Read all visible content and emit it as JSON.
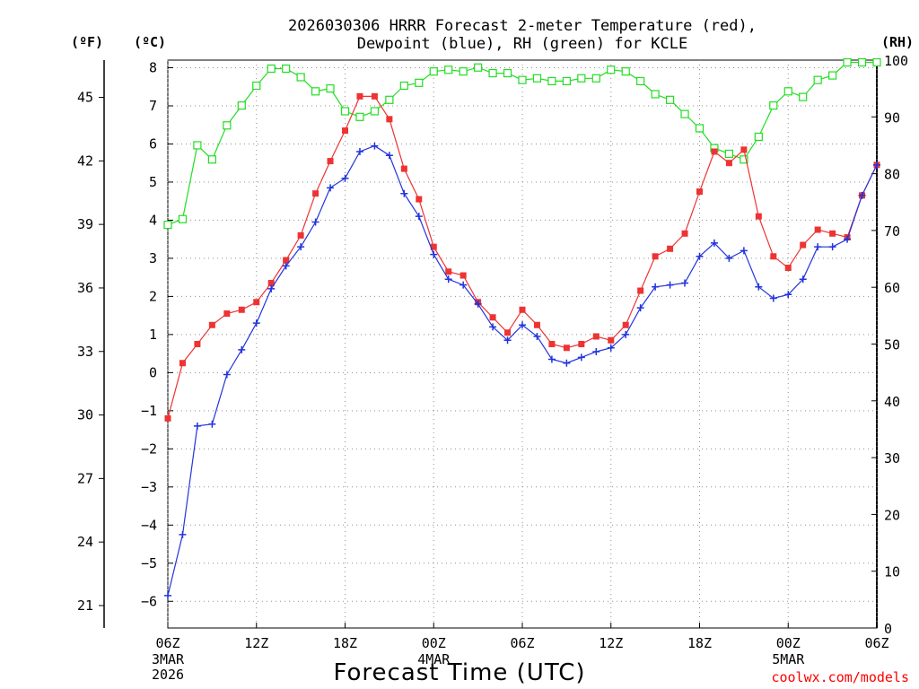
{
  "chart_data": {
    "type": "line",
    "title_line1": "2026030306 HRRR Forecast 2-meter Temperature (red),",
    "title_line2": "Dewpoint (blue), RH (green) for KCLE",
    "xlabel": "Forecast Time (UTC)",
    "credit": "coolwx.com/models",
    "left_unit_f": "(ºF)",
    "left_unit_c": "(ºC)",
    "right_unit": "(RH)",
    "x_hours_range": [
      0,
      48
    ],
    "y_c_range": [
      -6.7,
      8.2
    ],
    "y_rh_range": [
      0,
      100
    ],
    "x_ticks": [
      {
        "hour": 0,
        "label": "06Z",
        "sub1": "3MAR",
        "sub2": "2026"
      },
      {
        "hour": 6,
        "label": "12Z",
        "sub1": "",
        "sub2": ""
      },
      {
        "hour": 12,
        "label": "18Z",
        "sub1": "",
        "sub2": ""
      },
      {
        "hour": 18,
        "label": "00Z",
        "sub1": "4MAR",
        "sub2": ""
      },
      {
        "hour": 24,
        "label": "06Z",
        "sub1": "",
        "sub2": ""
      },
      {
        "hour": 30,
        "label": "12Z",
        "sub1": "",
        "sub2": ""
      },
      {
        "hour": 36,
        "label": "18Z",
        "sub1": "",
        "sub2": ""
      },
      {
        "hour": 42,
        "label": "00Z",
        "sub1": "5MAR",
        "sub2": ""
      },
      {
        "hour": 48,
        "label": "06Z",
        "sub1": "",
        "sub2": ""
      }
    ],
    "y_c_ticks": [
      "8",
      "7",
      "6",
      "5",
      "4",
      "3",
      "2",
      "1",
      "0",
      "−1",
      "−2",
      "−3",
      "−4",
      "−5",
      "−6"
    ],
    "y_f_ticks": [
      "45",
      "42",
      "39",
      "36",
      "33",
      "30",
      "27",
      "24",
      "21"
    ],
    "y_rh_ticks": [
      "100",
      "90",
      "80",
      "70",
      "60",
      "50",
      "40",
      "30",
      "20",
      "10",
      "0"
    ],
    "series": [
      {
        "name": "Temperature",
        "units": "degC",
        "color": "#ee3333",
        "marker": "filled-square",
        "values": [
          -1.2,
          0.25,
          0.75,
          1.25,
          1.55,
          1.65,
          1.85,
          2.35,
          2.95,
          3.6,
          4.7,
          5.55,
          6.35,
          7.25,
          7.25,
          6.65,
          5.35,
          4.55,
          3.3,
          2.65,
          2.55,
          1.85,
          1.45,
          1.05,
          1.65,
          1.25,
          0.75,
          0.65,
          0.75,
          0.95,
          0.85,
          1.25,
          2.15,
          3.05,
          3.25,
          3.65,
          4.75,
          5.8,
          5.5,
          5.85,
          4.1,
          3.05,
          2.75,
          3.35,
          3.75,
          3.65,
          3.55,
          4.65,
          5.45
        ]
      },
      {
        "name": "Dewpoint",
        "units": "degC",
        "color": "#2233dd",
        "marker": "plus",
        "values": [
          -5.85,
          -4.25,
          -1.4,
          -1.35,
          -0.05,
          0.6,
          1.3,
          2.2,
          2.8,
          3.3,
          3.95,
          4.85,
          5.1,
          5.8,
          5.95,
          5.7,
          4.7,
          4.1,
          3.1,
          2.45,
          2.3,
          1.8,
          1.2,
          0.85,
          1.25,
          0.95,
          0.35,
          0.25,
          0.4,
          0.55,
          0.65,
          1.0,
          1.7,
          2.25,
          2.3,
          2.35,
          3.05,
          3.4,
          3.0,
          3.2,
          2.25,
          1.95,
          2.05,
          2.45,
          3.3,
          3.3,
          3.5,
          4.65,
          5.45
        ]
      },
      {
        "name": "Relative Humidity",
        "units": "percent",
        "color": "#22dd22",
        "marker": "open-square",
        "values": [
          71,
          72,
          85,
          82.5,
          88.5,
          92,
          95.5,
          98.5,
          98.5,
          97,
          94.5,
          95,
          91,
          90,
          91,
          93,
          95.5,
          96,
          98,
          98.3,
          98,
          98.7,
          97.7,
          97.7,
          96.5,
          96.8,
          96.3,
          96.3,
          96.8,
          96.8,
          98.3,
          98,
          96.3,
          94,
          93,
          90.5,
          88,
          84.5,
          83.5,
          82.5,
          86.5,
          92,
          94.5,
          93.5,
          96.5,
          97.3,
          99.6,
          99.6,
          99.6
        ]
      }
    ]
  }
}
